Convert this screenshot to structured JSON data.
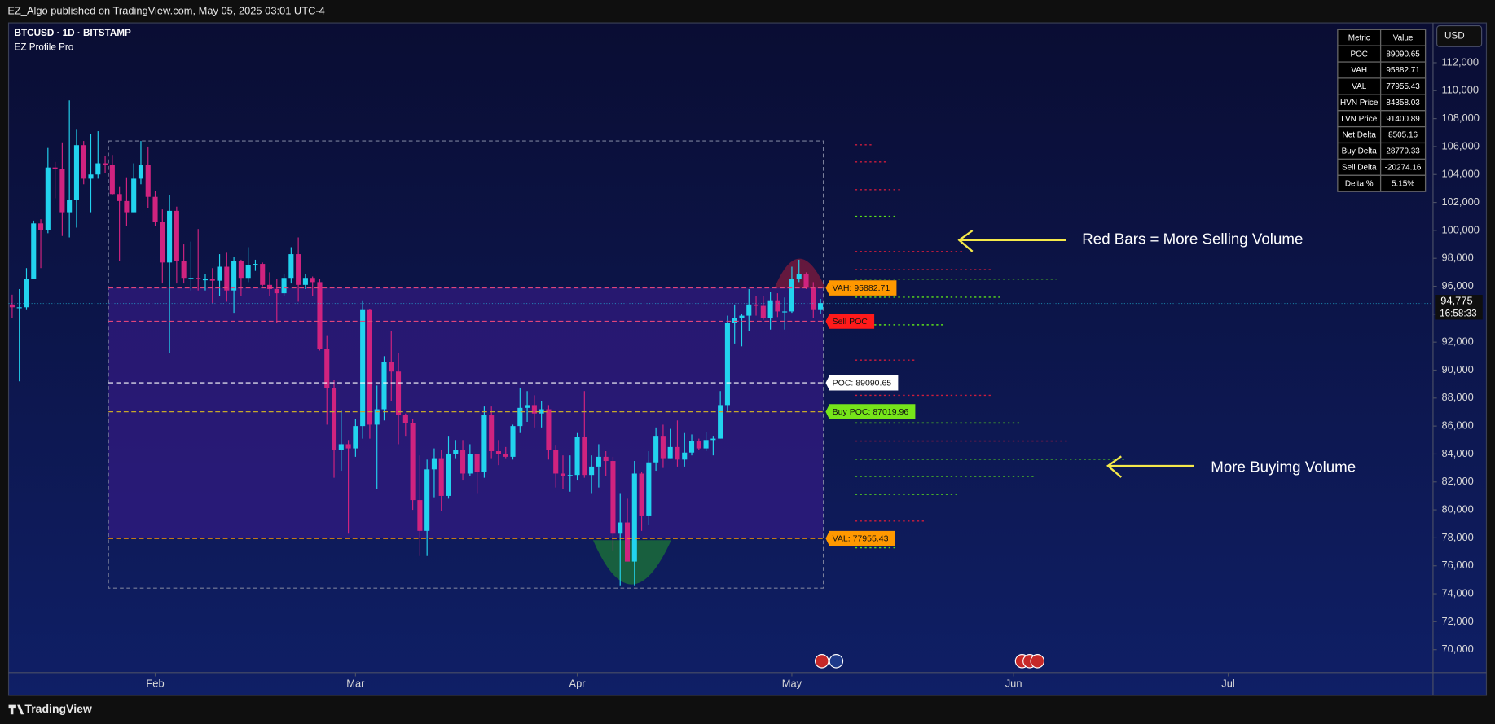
{
  "header": {
    "publish": "EZ_Algo published on TradingView.com, May 05, 2025 03:01 UTC-4",
    "brand": "TradingView"
  },
  "chart_data": {
    "type": "candlestick",
    "symbol": "BTCUSD · 1D · BITSTAMP",
    "indicator": "EZ Profile Pro",
    "up_color": "#22d3ee",
    "down_color": "#d0237f",
    "open": [
      94700,
      94500,
      94500,
      96500,
      100500,
      100000,
      104500,
      104400,
      101300,
      102200,
      106100,
      103700,
      104000,
      104800,
      104700,
      102600,
      102100,
      101300,
      103700,
      104700,
      102400,
      100600,
      97700,
      101400,
      97800,
      96600,
      96600,
      96500,
      96500,
      96400,
      97400,
      95700,
      97800,
      96600,
      97500,
      97600,
      96100,
      95800,
      95500,
      96600,
      98300,
      96100,
      96600,
      96300,
      91500,
      88700,
      84300,
      84700,
      84400,
      86000,
      94300,
      86100,
      87200,
      90600,
      89900,
      86800,
      86200,
      80700,
      78500,
      82900,
      83700,
      81000,
      84000,
      84300,
      82600,
      84000,
      82700,
      86800,
      84200,
      84000,
      83800,
      86000,
      87300,
      87500,
      86900,
      87200,
      84300,
      82600,
      82400,
      82500,
      85200,
      82500,
      83100,
      83800,
      83500,
      78300,
      79100,
      76300,
      82600,
      79600,
      83400,
      85300,
      83700,
      84500,
      83600,
      84100,
      84900,
      84400,
      85000,
      85100,
      87500,
      93400,
      93700,
      93900,
      94700,
      94600,
      93700,
      95000,
      94200,
      94200,
      96500,
      96900,
      95900,
      94300
    ],
    "high": [
      95400,
      95800,
      97300,
      100700,
      100800,
      105900,
      104900,
      106300,
      109300,
      107200,
      106400,
      106900,
      107100,
      105300,
      105400,
      103100,
      103800,
      104800,
      106400,
      106000,
      102800,
      101500,
      102500,
      101700,
      99000,
      99200,
      100100,
      96900,
      97300,
      98300,
      98400,
      98100,
      97900,
      98800,
      97900,
      97700,
      97000,
      96500,
      96900,
      98800,
      99500,
      96900,
      96700,
      96500,
      92500,
      89300,
      87100,
      85000,
      86500,
      95000,
      94400,
      88900,
      91000,
      92800,
      91200,
      86900,
      86500,
      83900,
      83600,
      84400,
      84300,
      85300,
      85000,
      85000,
      84700,
      84000,
      87400,
      87400,
      85000,
      84500,
      86100,
      88700,
      88500,
      88200,
      87800,
      87500,
      84600,
      83900,
      83900,
      85500,
      88500,
      83900,
      84700,
      84200,
      83800,
      81200,
      80800,
      83500,
      82700,
      84200,
      85900,
      86100,
      85800,
      86400,
      85500,
      85400,
      85100,
      85600,
      85300,
      88500,
      93900,
      94700,
      94000,
      95800,
      95300,
      95300,
      95600,
      95500,
      95200,
      97400,
      97900,
      97000,
      96300,
      95100
    ],
    "low": [
      93700,
      89200,
      94300,
      96500,
      97300,
      99800,
      102300,
      99600,
      99500,
      100200,
      103300,
      101300,
      103700,
      104100,
      102500,
      97800,
      100300,
      101300,
      103300,
      101600,
      100300,
      96200,
      91200,
      96200,
      96200,
      95700,
      95700,
      95700,
      94800,
      95300,
      94900,
      94100,
      95300,
      96300,
      97100,
      96000,
      95300,
      93400,
      95300,
      96200,
      94900,
      95800,
      95300,
      91400,
      86100,
      82300,
      82800,
      78300,
      83800,
      85100,
      85100,
      81500,
      86400,
      87800,
      84700,
      85300,
      80000,
      76700,
      76700,
      80900,
      79900,
      80800,
      83700,
      82100,
      82400,
      81200,
      82300,
      83700,
      83200,
      83700,
      83600,
      85500,
      86300,
      85900,
      85900,
      83600,
      81600,
      81500,
      81300,
      82100,
      82300,
      81200,
      81600,
      82400,
      77100,
      74600,
      76300,
      74600,
      78500,
      78900,
      82800,
      83000,
      83700,
      83100,
      83100,
      83900,
      84300,
      84200,
      83900,
      85100,
      87000,
      91900,
      91700,
      92800,
      93900,
      93600,
      92900,
      93800,
      92900,
      94100,
      96300,
      95800,
      93700,
      94000
    ],
    "close": [
      94500,
      94500,
      96500,
      100500,
      100000,
      104500,
      104400,
      101300,
      102200,
      106100,
      103700,
      104000,
      104800,
      104700,
      102600,
      102100,
      101300,
      103700,
      104700,
      102400,
      100600,
      97700,
      101400,
      97800,
      96600,
      96600,
      96500,
      96500,
      96400,
      97400,
      95700,
      97800,
      96600,
      97500,
      97600,
      96100,
      95800,
      95500,
      96600,
      98300,
      96100,
      96600,
      96300,
      91500,
      88700,
      84300,
      84700,
      84400,
      86000,
      94300,
      86100,
      87200,
      90600,
      89900,
      86800,
      86200,
      80700,
      78500,
      82900,
      83700,
      81000,
      84000,
      84300,
      82600,
      84000,
      82700,
      86800,
      84200,
      84000,
      83800,
      86000,
      87300,
      87500,
      86900,
      87200,
      84300,
      82600,
      82400,
      82500,
      85200,
      82500,
      83100,
      83800,
      83500,
      78300,
      79100,
      76300,
      82600,
      79600,
      83400,
      85300,
      83700,
      84500,
      83600,
      84100,
      84900,
      84400,
      85000,
      85100,
      87500,
      93400,
      93700,
      93900,
      94700,
      94600,
      93700,
      95000,
      94200,
      94200,
      96500,
      96900,
      95900,
      94300,
      94800
    ],
    "xlim": [
      -0.5,
      198.5
    ],
    "xticks": [
      {
        "value": 20,
        "label": "Feb"
      },
      {
        "value": 48,
        "label": "Mar"
      },
      {
        "value": 79,
        "label": "Apr"
      },
      {
        "value": 109,
        "label": "May"
      },
      {
        "value": 140,
        "label": "Jun"
      },
      {
        "value": 170,
        "label": "Jul"
      }
    ],
    "ylim": [
      68360,
      114850
    ],
    "yticks": [
      {
        "value": 70000,
        "label": "70,000"
      },
      {
        "value": 72000,
        "label": "72,000"
      },
      {
        "value": 74000,
        "label": "74,000"
      },
      {
        "value": 76000,
        "label": "76,000"
      },
      {
        "value": 78000,
        "label": "78,000"
      },
      {
        "value": 80000,
        "label": "80,000"
      },
      {
        "value": 82000,
        "label": "82,000"
      },
      {
        "value": 84000,
        "label": "84,000"
      },
      {
        "value": 86000,
        "label": "86,000"
      },
      {
        "value": 88000,
        "label": "88,000"
      },
      {
        "value": 90000,
        "label": "90,000"
      },
      {
        "value": 92000,
        "label": "92,000"
      },
      {
        "value": 94000,
        "label": "94,000"
      },
      {
        "value": 96000,
        "label": "96,000"
      },
      {
        "value": 98000,
        "label": "98,000"
      },
      {
        "value": 100000,
        "label": "100,000"
      },
      {
        "value": 102000,
        "label": "102,000"
      },
      {
        "value": 104000,
        "label": "104,000"
      },
      {
        "value": 106000,
        "label": "106,000"
      },
      {
        "value": 108000,
        "label": "108,000"
      },
      {
        "value": 110000,
        "label": "110,000"
      },
      {
        "value": 112000,
        "label": "112,000"
      }
    ],
    "currency": "USD",
    "last_price": {
      "value": 94775,
      "label": "94,775"
    },
    "countdown": "16:58:33",
    "profile": {
      "start": 14,
      "end": 113,
      "high": 106400,
      "low": 74400,
      "fill": "#3a1a8c"
    },
    "levels": [
      {
        "label": "VAH: 95882.71",
        "value": 95882.71,
        "color": "#ff9800",
        "line_color": "#e0457b"
      },
      {
        "label": "Sell POC",
        "value": 93500,
        "color": "#ff1a1a",
        "line_color": "#e0457b"
      },
      {
        "label": "POC: 89090.65",
        "value": 89090.65,
        "color": "#ffffff",
        "line_color": "#ffffff"
      },
      {
        "label": "Buy POC: 87019.96",
        "value": 87019.96,
        "color": "#76e51a",
        "line_color": "#c8a82a"
      },
      {
        "label": "VAL: 77955.43",
        "value": 77955.43,
        "color": "#ff9800",
        "line_color": "#ff9800"
      }
    ],
    "annotations": [
      "Red Bars = More Selling Volume",
      "More Buyimg Volume"
    ],
    "metrics_table": {
      "header": [
        "Metric",
        "Value"
      ],
      "rows": [
        [
          "POC",
          89090.65
        ],
        [
          "VAH",
          95882.71
        ],
        [
          "VAL",
          77955.43
        ],
        [
          "HVN Price",
          84358.03
        ],
        [
          "LVN Price",
          91400.89
        ],
        [
          "Net Delta",
          8505.16
        ],
        [
          "Buy Delta",
          28779.33
        ],
        [
          "Sell Delta",
          -20274.16
        ],
        [
          "Delta %",
          "5.15%"
        ]
      ]
    }
  }
}
